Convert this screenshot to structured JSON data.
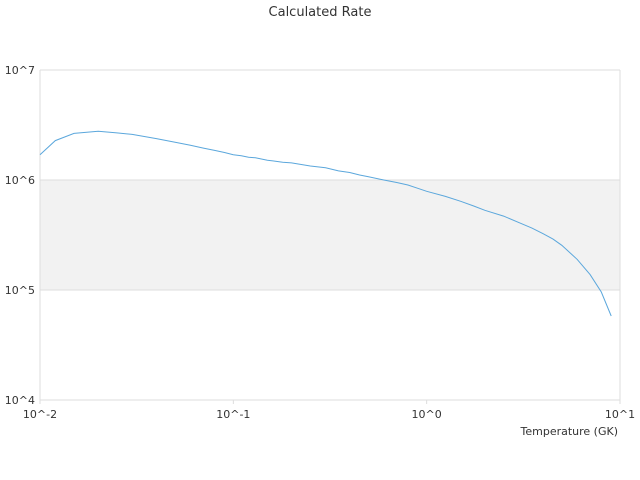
{
  "chart_data": {
    "type": "line",
    "title": "Calculated Rate",
    "xlabel": "Temperature (GK)",
    "ylabel": "",
    "x_scale": "log",
    "y_scale": "log",
    "xlim": [
      0.01,
      10
    ],
    "ylim": [
      10000,
      10000000
    ],
    "x_ticks": [
      "10^-2",
      "10^-1",
      "10^0",
      "10^1"
    ],
    "y_ticks": [
      "10^4",
      "10^5",
      "10^6",
      "10^7"
    ],
    "grid": true,
    "band_fill": "#f2f2f2",
    "colors": {
      "line": "#5ba7dc",
      "grid": "#dddddd",
      "text": "#333333"
    },
    "series": [
      {
        "x": [
          0.01,
          0.012,
          0.015,
          0.02,
          0.025,
          0.03,
          0.04,
          0.05,
          0.06,
          0.07,
          0.08,
          0.09,
          0.1,
          0.11,
          0.12,
          0.13,
          0.15,
          0.16,
          0.18,
          0.2,
          0.25,
          0.3,
          0.35,
          0.4,
          0.45,
          0.5,
          0.6,
          0.7,
          0.8,
          0.9,
          1.0,
          1.25,
          1.5,
          1.75,
          2.0,
          2.5,
          3.0,
          3.5,
          4.0,
          4.5,
          5.0,
          6.0,
          7.0,
          8.0,
          9.0
        ],
        "y": [
          1700000,
          2280000,
          2650000,
          2780000,
          2680000,
          2600000,
          2380000,
          2200000,
          2070000,
          1950000,
          1860000,
          1780000,
          1700000,
          1660000,
          1610000,
          1590000,
          1510000,
          1490000,
          1450000,
          1430000,
          1340000,
          1290000,
          1210000,
          1170000,
          1110000,
          1070000,
          1000000,
          950000,
          900000,
          840000,
          790000,
          710000,
          640000,
          580000,
          530000,
          470000,
          410000,
          365000,
          325000,
          290000,
          255000,
          190000,
          138000,
          96000,
          58000
        ]
      }
    ]
  }
}
